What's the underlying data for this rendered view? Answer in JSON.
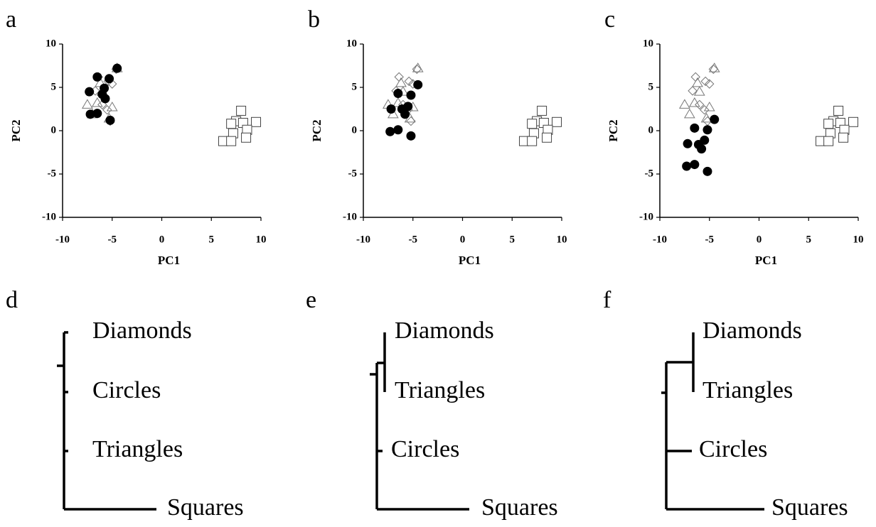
{
  "chart_data": [
    {
      "type": "scatter",
      "panel": "a",
      "xlabel": "PC1",
      "ylabel": "PC2",
      "xlim": [
        -10,
        10
      ],
      "ylim": [
        -10,
        10
      ],
      "xticks": [
        -10,
        -5,
        0,
        5,
        10
      ],
      "yticks": [
        10,
        5,
        0,
        -5,
        -10
      ],
      "series": [
        {
          "marker": "triangle",
          "color": "#777777",
          "x": [
            -7.5,
            -6.5,
            -5.0,
            -6.2,
            -4.5,
            -5.3,
            -7.0,
            -6.0
          ],
          "y": [
            3.0,
            3.2,
            2.7,
            5.5,
            7.2,
            1.4,
            1.9,
            4.5
          ]
        },
        {
          "marker": "diamond",
          "color": "#777777",
          "x": [
            -6.4,
            -5.0,
            -6.7,
            -5.4,
            -5.5,
            -5.2,
            -4.6,
            -6.0
          ],
          "y": [
            6.2,
            5.4,
            4.6,
            5.7,
            2.4,
            1.1,
            7.1,
            3.0
          ]
        },
        {
          "marker": "circle",
          "color": "#000000",
          "x": [
            -4.5,
            -6.5,
            -5.3,
            -5.8,
            -7.3,
            -6.0,
            -5.7,
            -7.2,
            -6.5,
            -5.2
          ],
          "y": [
            7.2,
            6.2,
            6.0,
            4.9,
            4.5,
            4.2,
            3.7,
            1.9,
            2.0,
            1.2
          ]
        },
        {
          "marker": "square",
          "color": "#444444",
          "x": [
            8.0,
            7.5,
            9.5,
            7.0,
            8.2,
            8.6,
            7.2,
            8.5,
            6.2,
            7.0
          ],
          "y": [
            2.3,
            1.1,
            1.0,
            0.8,
            0.9,
            0.1,
            -0.3,
            -0.8,
            -1.2,
            -1.2
          ]
        }
      ]
    },
    {
      "type": "scatter",
      "panel": "b",
      "xlabel": "PC1",
      "ylabel": "PC2",
      "xlim": [
        -10,
        10
      ],
      "ylim": [
        -10,
        10
      ],
      "xticks": [
        -10,
        -5,
        0,
        5,
        10
      ],
      "yticks": [
        10,
        5,
        0,
        -5,
        -10
      ],
      "series": [
        {
          "marker": "triangle",
          "color": "#777777",
          "x": [
            -7.5,
            -6.5,
            -5.0,
            -6.2,
            -4.5,
            -5.3,
            -7.0,
            -6.0
          ],
          "y": [
            3.0,
            3.2,
            2.7,
            5.5,
            7.2,
            1.4,
            1.9,
            4.5
          ]
        },
        {
          "marker": "diamond",
          "color": "#777777",
          "x": [
            -6.4,
            -5.0,
            -6.7,
            -5.4,
            -5.5,
            -5.2,
            -4.6,
            -6.0
          ],
          "y": [
            6.2,
            5.4,
            4.6,
            5.7,
            2.4,
            1.1,
            7.1,
            3.0
          ]
        },
        {
          "marker": "circle",
          "color": "#000000",
          "x": [
            -4.5,
            -6.5,
            -5.2,
            -7.2,
            -6.1,
            -5.5,
            -5.8,
            -7.3,
            -6.5,
            -5.2
          ],
          "y": [
            5.3,
            4.3,
            4.1,
            2.5,
            2.5,
            2.8,
            1.9,
            -0.1,
            0.1,
            -0.6
          ]
        },
        {
          "marker": "square",
          "color": "#444444",
          "x": [
            8.0,
            7.5,
            9.5,
            7.0,
            8.2,
            8.6,
            7.2,
            8.5,
            6.2,
            7.0
          ],
          "y": [
            2.3,
            1.1,
            1.0,
            0.8,
            0.9,
            0.1,
            -0.3,
            -0.8,
            -1.2,
            -1.2
          ]
        }
      ]
    },
    {
      "type": "scatter",
      "panel": "c",
      "xlabel": "PC1",
      "ylabel": "PC2",
      "xlim": [
        -10,
        10
      ],
      "ylim": [
        -10,
        10
      ],
      "xticks": [
        -10,
        -5,
        0,
        5,
        10
      ],
      "yticks": [
        10,
        5,
        0,
        -5,
        -10
      ],
      "series": [
        {
          "marker": "triangle",
          "color": "#777777",
          "x": [
            -7.5,
            -6.5,
            -5.0,
            -6.2,
            -4.5,
            -5.3,
            -7.0,
            -6.0
          ],
          "y": [
            3.0,
            3.2,
            2.7,
            5.5,
            7.2,
            1.4,
            1.9,
            4.5
          ]
        },
        {
          "marker": "diamond",
          "color": "#777777",
          "x": [
            -6.4,
            -5.0,
            -6.7,
            -5.4,
            -5.5,
            -5.2,
            -4.6,
            -6.0
          ],
          "y": [
            6.2,
            5.4,
            4.6,
            5.7,
            2.4,
            1.1,
            7.1,
            3.0
          ]
        },
        {
          "marker": "circle",
          "color": "#000000",
          "x": [
            -4.5,
            -6.5,
            -5.2,
            -5.5,
            -7.2,
            -6.1,
            -5.8,
            -7.3,
            -6.5,
            -5.2
          ],
          "y": [
            1.3,
            0.3,
            0.1,
            -1.1,
            -1.5,
            -1.6,
            -2.1,
            -4.1,
            -3.9,
            -4.7
          ]
        },
        {
          "marker": "square",
          "color": "#444444",
          "x": [
            8.0,
            7.5,
            9.5,
            7.0,
            8.2,
            8.6,
            7.2,
            8.5,
            6.2,
            7.0
          ],
          "y": [
            2.3,
            1.1,
            1.0,
            0.8,
            0.9,
            0.1,
            -0.3,
            -0.8,
            -1.2,
            -1.2
          ]
        }
      ]
    },
    {
      "type": "dendrogram",
      "panel": "d",
      "leaves": [
        "Diamonds",
        "Circles",
        "Triangles",
        "Squares"
      ]
    },
    {
      "type": "dendrogram",
      "panel": "e",
      "leaves": [
        "Diamonds",
        "Triangles",
        "Circles",
        "Squares"
      ]
    },
    {
      "type": "dendrogram",
      "panel": "f",
      "leaves": [
        "Diamonds",
        "Triangles",
        "Circles",
        "Squares"
      ]
    }
  ]
}
